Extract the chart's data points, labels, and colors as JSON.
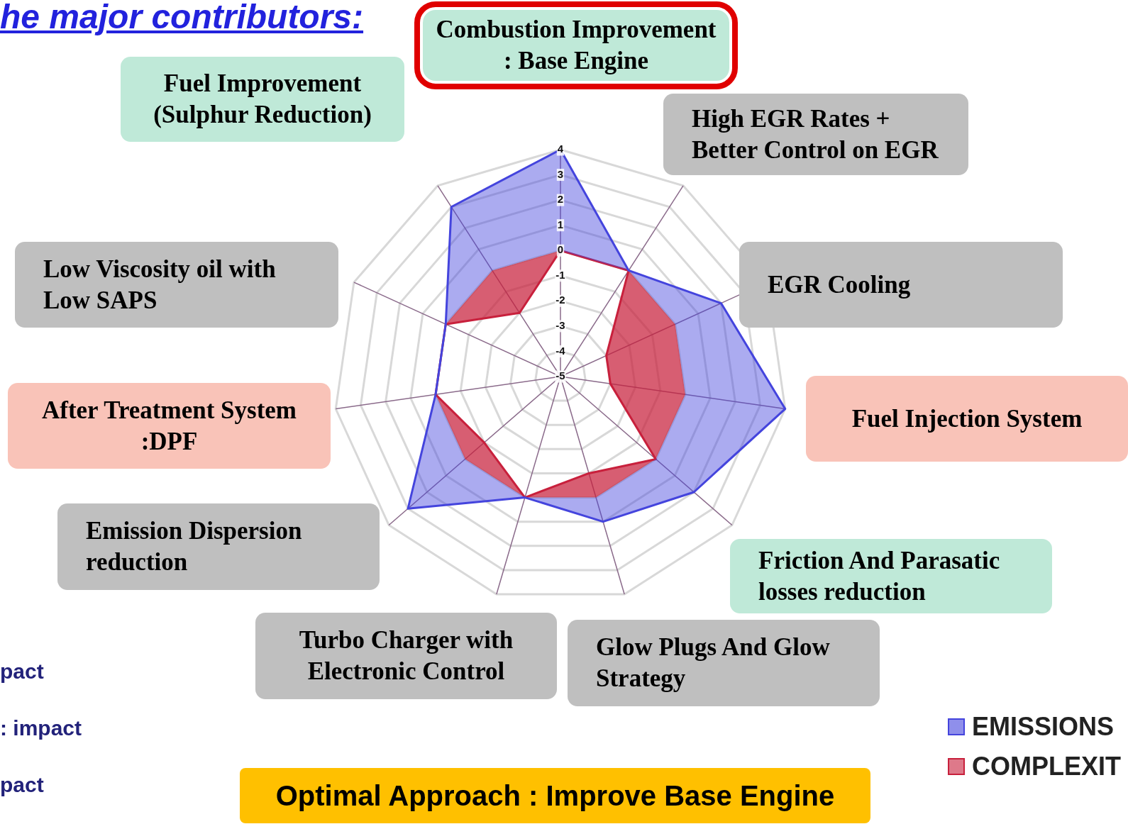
{
  "chart_data": {
    "type": "radar",
    "title": "he major contributors:",
    "categories": [
      "Combustion Improvement : Base Engine",
      "High EGR Rates + Better Control on EGR",
      "EGR Cooling",
      "Fuel Injection System",
      "Friction And Parasatic losses reduction",
      "Glow Plugs And Glow Strategy",
      "Turbo Charger with Electronic Control",
      "Emission Dispersion reduction",
      "After Treatment System :DPF",
      "Low Viscosity oil with Low SAPS",
      "Fuel Improvement (Sulphur Reduction)"
    ],
    "series": [
      {
        "name": "EMISSIONS",
        "color": "#4444dd",
        "values": [
          4,
          0,
          2,
          4,
          2,
          1,
          0,
          3,
          0,
          0,
          3
        ]
      },
      {
        "name": "COMPLEXIT",
        "color": "#c8203c",
        "values": [
          0,
          0,
          -3,
          -3,
          0,
          -1,
          0,
          -1,
          0,
          0,
          -2
        ]
      }
    ],
    "ylim": [
      -5,
      4
    ],
    "yticks": [
      -5,
      -4,
      -3,
      -2,
      -1,
      0,
      1,
      2,
      3,
      4
    ],
    "grid": true,
    "legend": "bottom right",
    "annotations": [
      "pact",
      ":  impact",
      "pact",
      "Optimal Approach : Improve Base Engine"
    ]
  }
}
